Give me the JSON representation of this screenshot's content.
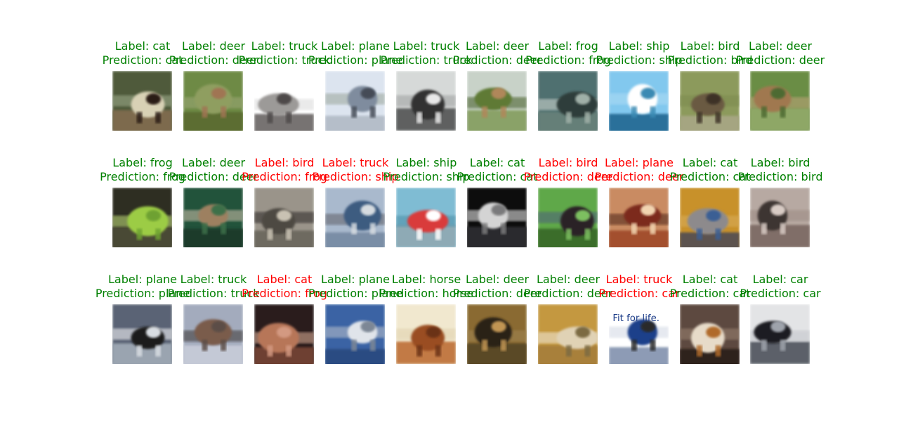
{
  "colors": {
    "correct": "#008000",
    "wrong": "#ff0000"
  },
  "rows": [
    [
      {
        "label": "Label: cat",
        "prediction": "Prediction: cat",
        "correct": true,
        "image": "cat-in-doorway",
        "palette": [
          "#4f5a3a",
          "#d8d1b5",
          "#2a1c12",
          "#7d6b4d",
          "#9fae8d"
        ]
      },
      {
        "label": "Label: deer",
        "prediction": "Prediction: deer",
        "correct": true,
        "image": "deer-in-grass",
        "palette": [
          "#6e8a45",
          "#8f9e61",
          "#a07552",
          "#5b6d32",
          "#9da978"
        ]
      },
      {
        "label": "Label: truck",
        "prediction": "Prediction: truck",
        "correct": true,
        "image": "tow-truck",
        "palette": [
          "#ffffff",
          "#9c9a98",
          "#4d4a48",
          "#777372",
          "#d9d9d9"
        ]
      },
      {
        "label": "Label: plane",
        "prediction": "Prediction: plane",
        "correct": true,
        "image": "airliner-on-runway",
        "palette": [
          "#dce4ef",
          "#7f8c9e",
          "#444b57",
          "#b5bec9",
          "#9aa59a"
        ]
      },
      {
        "label": "Label: truck",
        "prediction": "Prediction: truck",
        "correct": true,
        "image": "box-truck",
        "palette": [
          "#d6d9d8",
          "#313233",
          "#e8e8e8",
          "#5e6161",
          "#9d9f9f"
        ]
      },
      {
        "label": "Label: deer",
        "prediction": "Prediction: deer",
        "correct": true,
        "image": "deer-in-reeds",
        "palette": [
          "#c8d2c8",
          "#5e7a35",
          "#b0875a",
          "#8aa267",
          "#3f5a22"
        ]
      },
      {
        "label": "Label: frog",
        "prediction": "Prediction: frog",
        "correct": true,
        "image": "frog-on-rock",
        "palette": [
          "#4f7070",
          "#2e3c3b",
          "#a0b0a8",
          "#657f78",
          "#d6dcd5"
        ]
      },
      {
        "label": "Label: ship",
        "prediction": "Prediction: ship",
        "correct": true,
        "image": "sailboat",
        "palette": [
          "#82c8ee",
          "#ffffff",
          "#3a8ab3",
          "#2a6f9a",
          "#aedcf4"
        ]
      },
      {
        "label": "Label: bird",
        "prediction": "Prediction: bird",
        "correct": true,
        "image": "bird-on-branch",
        "palette": [
          "#8c9a5b",
          "#6b5a42",
          "#3c3326",
          "#a5a581",
          "#7c8a4f"
        ]
      },
      {
        "label": "Label: deer",
        "prediction": "Prediction: deer",
        "correct": true,
        "image": "deer-standing",
        "palette": [
          "#6b8d44",
          "#a0784f",
          "#4d6a30",
          "#8ea766",
          "#c2a57c"
        ]
      }
    ],
    [
      {
        "label": "Label: frog",
        "prediction": "Prediction: frog",
        "correct": true,
        "image": "green-frog",
        "palette": [
          "#2e2f24",
          "#9ccc44",
          "#6ea131",
          "#4a4a34",
          "#c2e07a"
        ]
      },
      {
        "label": "Label: deer",
        "prediction": "Prediction: deer",
        "correct": true,
        "image": "deer-forest",
        "palette": [
          "#24523a",
          "#9d8061",
          "#3d6f4a",
          "#1b3a2a",
          "#d3c3ad"
        ]
      },
      {
        "label": "Label: bird",
        "prediction": "Prediction: frog",
        "correct": false,
        "image": "bird-on-gravel",
        "palette": [
          "#9a948a",
          "#4d4943",
          "#c9c2b3",
          "#6e6a61",
          "#2a2825"
        ]
      },
      {
        "label": "Label: truck",
        "prediction": "Prediction: ship",
        "correct": false,
        "image": "blue-truck",
        "palette": [
          "#a9b9cd",
          "#3e5c80",
          "#d6dbe0",
          "#7a8ea6",
          "#5f5f66"
        ]
      },
      {
        "label": "Label: ship",
        "prediction": "Prediction: ship",
        "correct": true,
        "image": "red-ship",
        "palette": [
          "#7fbcd3",
          "#d93a3a",
          "#ffffff",
          "#8eaab5",
          "#4b8ea6"
        ]
      },
      {
        "label": "Label: cat",
        "prediction": "Prediction: cat",
        "correct": true,
        "image": "white-cat-dark",
        "palette": [
          "#0d0d10",
          "#d4d4d4",
          "#7a7a7c",
          "#2a2a2e",
          "#f1f1f1"
        ]
      },
      {
        "label": "Label: bird",
        "prediction": "Prediction: deer",
        "correct": false,
        "image": "black-bird-grass",
        "palette": [
          "#5ea84a",
          "#2b2127",
          "#7dbf61",
          "#3a6d2c",
          "#4e5e7c"
        ]
      },
      {
        "label": "Label: plane",
        "prediction": "Prediction: deer",
        "correct": false,
        "image": "red-plane",
        "palette": [
          "#c98b62",
          "#7c2c1e",
          "#f2d4b0",
          "#a3502f",
          "#4a2015"
        ]
      },
      {
        "label": "Label: cat",
        "prediction": "Prediction: cat",
        "correct": true,
        "image": "tabby-cat",
        "palette": [
          "#c8912a",
          "#8d8a8c",
          "#3a5e94",
          "#5c534f",
          "#d9ad5c"
        ]
      },
      {
        "label": "Label: bird",
        "prediction": "Prediction: bird",
        "correct": true,
        "image": "ostrich",
        "palette": [
          "#b7a9a2",
          "#3d3533",
          "#d8cbc4",
          "#806e67",
          "#9b8a82"
        ]
      }
    ],
    [
      {
        "label": "Label: plane",
        "prediction": "Prediction: plane",
        "correct": true,
        "image": "stealth-bomber",
        "palette": [
          "#5a6474",
          "#1b1c1f",
          "#d8dde2",
          "#9aa4b0",
          "#ffffff"
        ]
      },
      {
        "label": "Label: truck",
        "prediction": "Prediction: truck",
        "correct": true,
        "image": "military-truck",
        "palette": [
          "#a3abbd",
          "#7a5b4c",
          "#5b4e47",
          "#c4c9d6",
          "#3a3430"
        ]
      },
      {
        "label": "Label: cat",
        "prediction": "Prediction: frog",
        "correct": false,
        "image": "fluffy-cat",
        "palette": [
          "#2c1d1a",
          "#b77659",
          "#d39981",
          "#6e3f32",
          "#e2b39b"
        ]
      },
      {
        "label": "Label: plane",
        "prediction": "Prediction: plane",
        "correct": true,
        "image": "planes-at-airport",
        "palette": [
          "#3b63a4",
          "#e0e4ea",
          "#7d8795",
          "#2a4c82",
          "#bcc3cc"
        ]
      },
      {
        "label": "Label: horse",
        "prediction": "Prediction: horse",
        "correct": true,
        "image": "brown-horse",
        "palette": [
          "#f1e8cf",
          "#9a4e23",
          "#6b3315",
          "#c27a44",
          "#e0d2ae"
        ]
      },
      {
        "label": "Label: deer",
        "prediction": "Prediction: deer",
        "correct": true,
        "image": "deer-autumn",
        "palette": [
          "#8a6b31",
          "#2a2217",
          "#c19553",
          "#5a4a27",
          "#a18653"
        ]
      },
      {
        "label": "Label: deer",
        "prediction": "Prediction: deer",
        "correct": true,
        "image": "deer-lying",
        "palette": [
          "#c4983f",
          "#e0d2b5",
          "#7c6a43",
          "#a8803a",
          "#f2ede0"
        ]
      },
      {
        "label": "Label: truck",
        "prediction": "Prediction: car",
        "correct": false,
        "image": "fit-for-life-truck",
        "palette": [
          "#ffffff",
          "#1f3f8a",
          "#2c2c2c",
          "#8d9bb5",
          "#d2d8e4"
        ],
        "sign_text": "Fit for life."
      },
      {
        "label": "Label: cat",
        "prediction": "Prediction: cat",
        "correct": true,
        "image": "cat-lying",
        "palette": [
          "#5d4a3f",
          "#e7dbc9",
          "#b06a2a",
          "#2e231c",
          "#9b8472"
        ]
      },
      {
        "label": "Label: car",
        "prediction": "Prediction: car",
        "correct": true,
        "image": "dark-car",
        "palette": [
          "#e3e4e6",
          "#1d1f24",
          "#9ea3ab",
          "#5b6069",
          "#c2c5ca"
        ]
      }
    ]
  ]
}
